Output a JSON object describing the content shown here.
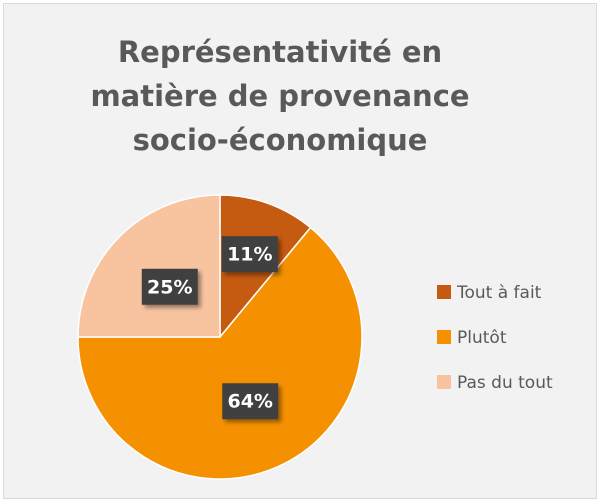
{
  "chart_data": {
    "type": "pie",
    "title": "Représentativité en matière de provenance socio-économique",
    "categories": [
      "Tout à fait",
      "Plutôt",
      "Pas du tout"
    ],
    "values": [
      11,
      64,
      25
    ],
    "value_labels": [
      "11%",
      "64%",
      "25%"
    ],
    "colors": [
      "#c55a11",
      "#f59100",
      "#f8c4a0"
    ],
    "legend": "right"
  }
}
